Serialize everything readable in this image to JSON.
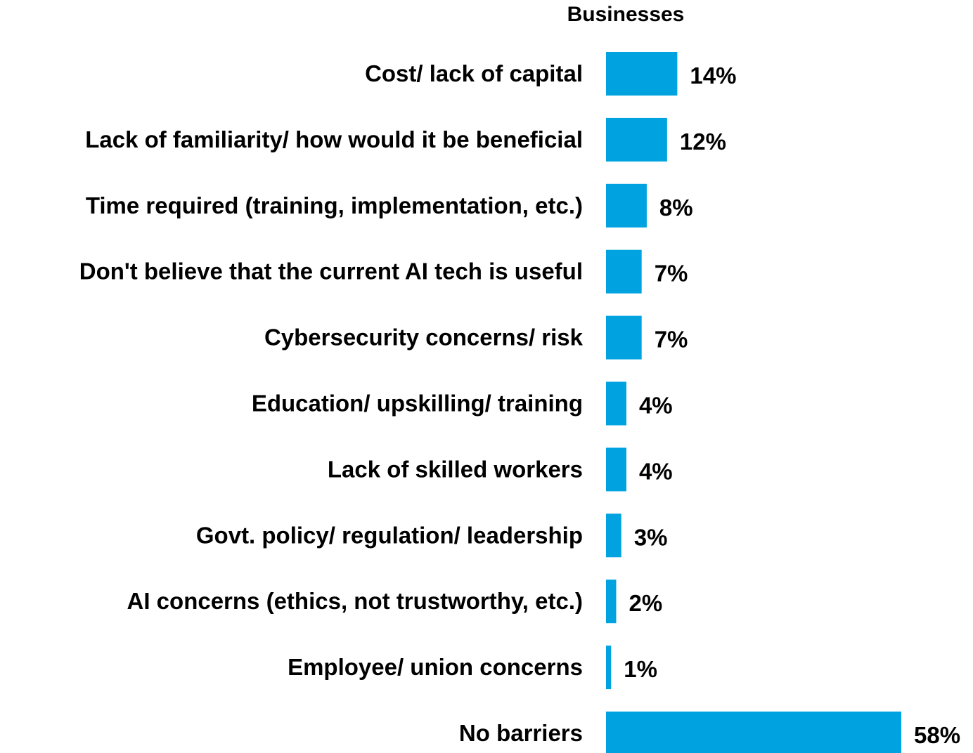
{
  "chart_data": {
    "type": "bar",
    "orientation": "horizontal",
    "series_title": "Businesses",
    "categories": [
      "Cost/ lack of capital",
      "Lack of familiarity/ how would it be beneficial",
      "Time required (training, implementation, etc.)",
      "Don't believe that the current AI tech is useful",
      "Cybersecurity concerns/ risk",
      "Education/ upskilling/ training",
      "Lack of skilled workers",
      "Govt. policy/ regulation/ leadership",
      "AI concerns (ethics, not trustworthy, etc.)",
      "Employee/ union concerns",
      "No barriers"
    ],
    "values": [
      14,
      12,
      8,
      7,
      7,
      4,
      4,
      3,
      2,
      1,
      58
    ],
    "value_labels": [
      "14%",
      "12%",
      "8%",
      "7%",
      "7%",
      "4%",
      "4%",
      "3%",
      "2%",
      "1%",
      "58%"
    ],
    "unit": "%",
    "xlim": [
      0,
      58
    ],
    "grid": false,
    "legend": "none",
    "bar_color": "#00A3E0"
  }
}
